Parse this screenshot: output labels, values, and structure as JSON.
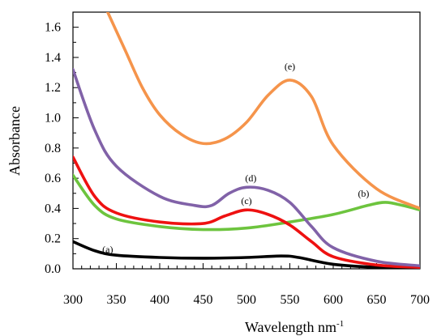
{
  "chart_data": {
    "type": "line",
    "xlabel": "Wavelength nm",
    "xlabel_sup": "-1",
    "ylabel": "Absorbance",
    "xlim": [
      300,
      700
    ],
    "ylim": [
      0.0,
      1.7
    ],
    "xticks": [
      300,
      350,
      400,
      450,
      500,
      550,
      600,
      650,
      700
    ],
    "xtick_labels": [
      "300",
      "350",
      "400",
      "450",
      "500",
      "550",
      "600",
      "650",
      "700"
    ],
    "yticks": [
      0.0,
      0.2,
      0.4,
      0.6,
      0.8,
      1.0,
      1.2,
      1.4,
      1.6
    ],
    "ytick_labels": [
      "0.0",
      "0.2",
      "0.4",
      "0.6",
      "0.8",
      "1.0",
      "1.2",
      "1.4",
      "1.6"
    ],
    "grid": false,
    "legend": "none",
    "series": [
      {
        "name": "(a)",
        "color": "#000000",
        "label_at": [
          340,
          0.13
        ],
        "x": [
          300,
          325,
          350,
          400,
          450,
          500,
          540,
          560,
          600,
          650,
          700
        ],
        "y": [
          0.18,
          0.12,
          0.09,
          0.075,
          0.07,
          0.075,
          0.085,
          0.075,
          0.03,
          0.01,
          0.005
        ]
      },
      {
        "name": "(b)",
        "color": "#6dc43e",
        "label_at": [
          635,
          0.5
        ],
        "x": [
          300,
          325,
          350,
          400,
          450,
          500,
          550,
          600,
          640,
          660,
          680,
          700
        ],
        "y": [
          0.62,
          0.42,
          0.33,
          0.28,
          0.26,
          0.27,
          0.31,
          0.36,
          0.42,
          0.44,
          0.42,
          0.39
        ]
      },
      {
        "name": "(c)",
        "color": "#ee1111",
        "label_at": [
          500,
          0.45
        ],
        "x": [
          300,
          325,
          350,
          400,
          450,
          475,
          500,
          525,
          550,
          575,
          600,
          650,
          700
        ],
        "y": [
          0.74,
          0.48,
          0.37,
          0.31,
          0.3,
          0.35,
          0.39,
          0.36,
          0.29,
          0.18,
          0.08,
          0.025,
          0.01
        ]
      },
      {
        "name": "(d)",
        "color": "#8162a8",
        "label_at": [
          505,
          0.6
        ],
        "x": [
          300,
          325,
          350,
          400,
          440,
          460,
          480,
          500,
          525,
          550,
          575,
          600,
          650,
          700
        ],
        "y": [
          1.32,
          0.92,
          0.68,
          0.48,
          0.42,
          0.42,
          0.5,
          0.54,
          0.52,
          0.44,
          0.28,
          0.14,
          0.05,
          0.02
        ]
      },
      {
        "name": "(e)",
        "color": "#f5944b",
        "label_at": [
          550,
          1.34
        ],
        "x": [
          340,
          360,
          380,
          400,
          425,
          450,
          475,
          500,
          525,
          550,
          575,
          600,
          650,
          700
        ],
        "y": [
          1.7,
          1.45,
          1.2,
          1.02,
          0.89,
          0.83,
          0.86,
          0.97,
          1.15,
          1.25,
          1.14,
          0.82,
          0.53,
          0.4
        ]
      }
    ]
  }
}
